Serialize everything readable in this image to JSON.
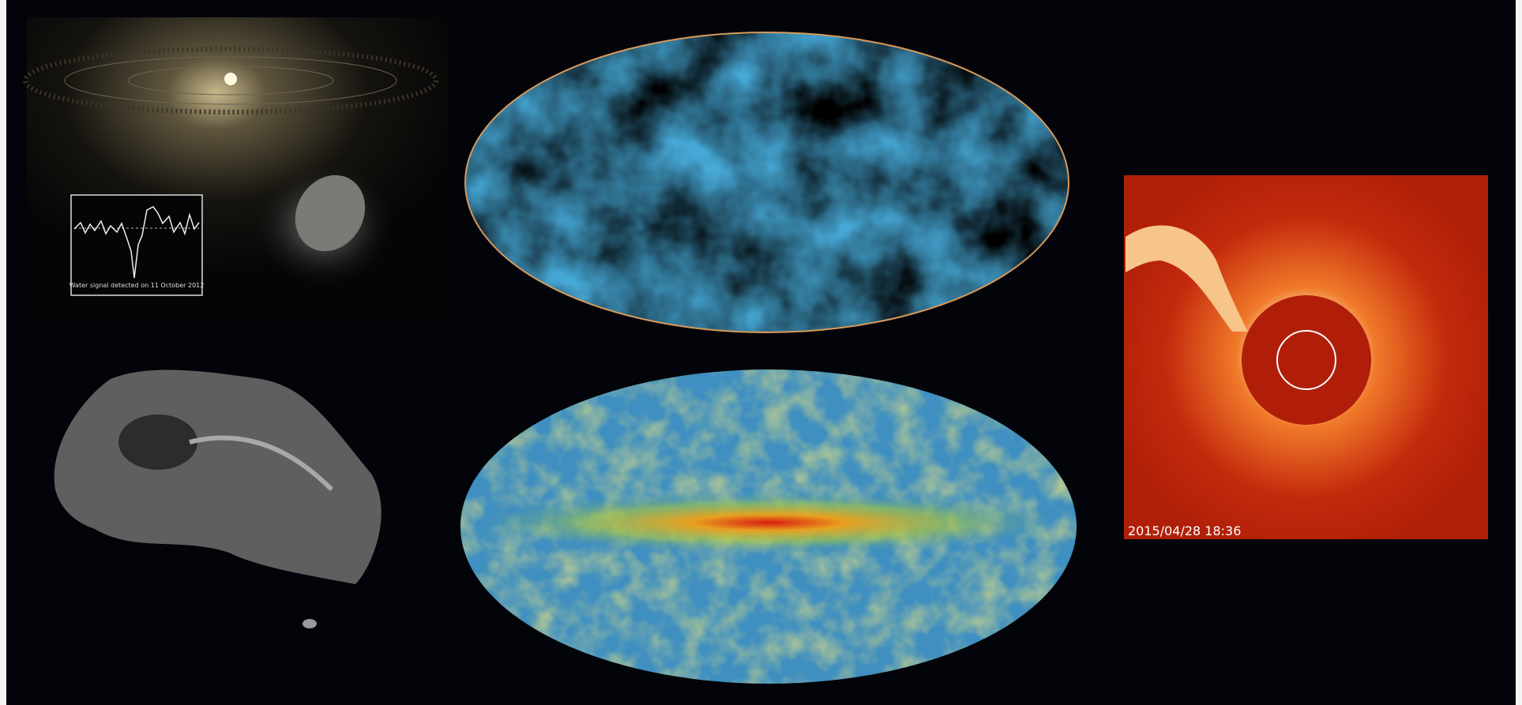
{
  "inset_label": "Water signal detected on 11 October 2012",
  "timestamp": "2015/04/28 18:36"
}
